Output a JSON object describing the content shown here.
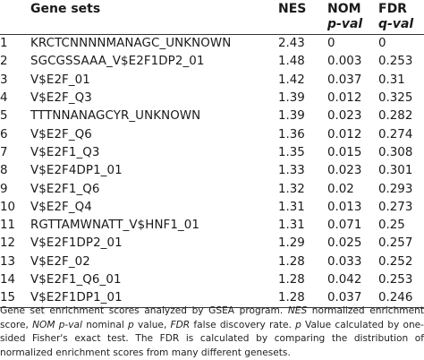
{
  "headers": {
    "gene_sets": "Gene sets",
    "nes": "NES",
    "nom_top": "NOM",
    "nom_bottom": "p-val",
    "fdr_top": "FDR",
    "fdr_bottom": "q-val"
  },
  "rows": [
    {
      "idx": "1",
      "gene": "KRCTCNNNNMANAGC_UNKNOWN",
      "nes": "2.43",
      "nom": "0",
      "fdr": "0"
    },
    {
      "idx": "2",
      "gene": "SGCGSSAAA_V$E2F1DP2_01",
      "nes": "1.48",
      "nom": "0.003",
      "fdr": "0.253"
    },
    {
      "idx": "3",
      "gene": "V$E2F_01",
      "nes": "1.42",
      "nom": "0.037",
      "fdr": "0.31"
    },
    {
      "idx": "4",
      "gene": "V$E2F_Q3",
      "nes": "1.39",
      "nom": "0.012",
      "fdr": "0.325"
    },
    {
      "idx": "5",
      "gene": "TTTNNANAGCYR_UNKNOWN",
      "nes": "1.39",
      "nom": "0.023",
      "fdr": "0.282"
    },
    {
      "idx": "6",
      "gene": "V$E2F_Q6",
      "nes": "1.36",
      "nom": "0.012",
      "fdr": "0.274"
    },
    {
      "idx": "7",
      "gene": "V$E2F1_Q3",
      "nes": "1.35",
      "nom": "0.015",
      "fdr": "0.308"
    },
    {
      "idx": "8",
      "gene": "V$E2F4DP1_01",
      "nes": "1.33",
      "nom": "0.023",
      "fdr": "0.301"
    },
    {
      "idx": "9",
      "gene": "V$E2F1_Q6",
      "nes": "1.32",
      "nom": "0.02",
      "fdr": "0.293"
    },
    {
      "idx": "10",
      "gene": "V$E2F_Q4",
      "nes": "1.31",
      "nom": "0.013",
      "fdr": "0.273"
    },
    {
      "idx": "11",
      "gene": "RGTTAMWNATT_V$HNF1_01",
      "nes": "1.31",
      "nom": "0.071",
      "fdr": "0.25"
    },
    {
      "idx": "12",
      "gene": "V$E2F1DP2_01",
      "nes": "1.29",
      "nom": "0.025",
      "fdr": "0.257"
    },
    {
      "idx": "13",
      "gene": "V$E2F_02",
      "nes": "1.28",
      "nom": "0.033",
      "fdr": "0.252"
    },
    {
      "idx": "14",
      "gene": "V$E2F1_Q6_01",
      "nes": "1.28",
      "nom": "0.042",
      "fdr": "0.253"
    },
    {
      "idx": "15",
      "gene": "V$E2F1DP1_01",
      "nes": "1.28",
      "nom": "0.037",
      "fdr": "0.246"
    }
  ],
  "footnote": {
    "part1": "Gene set enrichment scores analyzed by GSEA program. ",
    "nes_abbr": "NES",
    "part2": " normalized enrichment score, ",
    "nom_abbr": "NOM p-val",
    "part3": " nominal ",
    "p_letter": "p",
    "part4": " value, ",
    "fdr_abbr": "FDR",
    "part5": " false discovery rate. ",
    "p_letter2": "p",
    "part6": " Value calculated by one-sided Fisher's exact test. The FDR is calculated by comparing the distribution of normalized enrichment scores from many different genesets."
  }
}
